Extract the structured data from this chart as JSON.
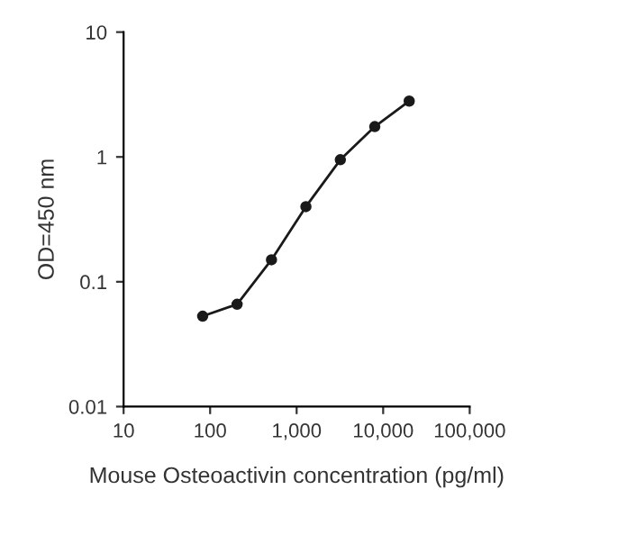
{
  "chart_data": {
    "type": "line",
    "xlabel": "Mouse Osteoactivin concentration (pg/ml)",
    "ylabel": "OD=450 nm",
    "x": [
      82,
      205,
      512,
      1280,
      3200,
      8000,
      20000
    ],
    "series": [
      {
        "color": "#1a1a1a",
        "values": [
          0.053,
          0.066,
          0.15,
          0.4,
          0.95,
          1.75,
          2.8
        ]
      }
    ],
    "log": "xy",
    "xlim": [
      10,
      100000
    ],
    "ylim": [
      0.01,
      10
    ],
    "xticks": [
      10,
      100,
      {
        "value": 1000,
        "label": "1,000"
      },
      {
        "value": 10000,
        "label": "10,000"
      },
      {
        "value": 100000,
        "label": "100,000"
      }
    ],
    "yticks": [
      0.01,
      0.1,
      1,
      10
    ],
    "marker": "circle",
    "line_style": "solid",
    "grid": false,
    "legend": false
  }
}
